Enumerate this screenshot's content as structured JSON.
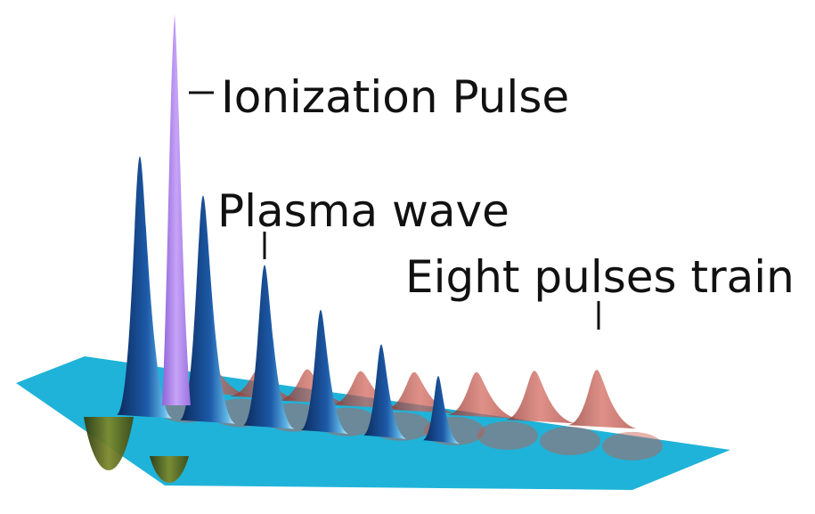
{
  "diagram": {
    "labels": {
      "ionization_pulse": "Ionization Pulse",
      "plasma_wave": "Plasma wave",
      "eight_pulses_train": "Eight pulses train"
    },
    "colors": {
      "plane": "#1fb3d9",
      "plasma_wave": "#123d7a",
      "ionization_pulse": "#b58cf0",
      "pulse_train": "#c8574a",
      "trough": "#5c6b22"
    },
    "counts": {
      "plasma_wave_peaks": 6,
      "train_pulses": 8
    }
  }
}
